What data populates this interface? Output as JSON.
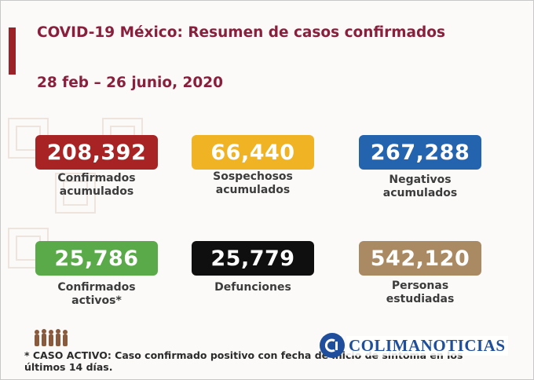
{
  "title": "COVID-19 México: Resumen de casos confirmados",
  "subtitle": "28 feb – 26 junio, 2020",
  "stats": [
    {
      "value": "208,392",
      "label_lines": [
        "Confirmados",
        "acumulados"
      ],
      "color": "#a82424"
    },
    {
      "value": "66,440",
      "label_lines": [
        "Sospechosos",
        "acumulados"
      ],
      "color": "#f0b323"
    },
    {
      "value": "267,288",
      "label_lines": [
        "Negativos",
        "acumulados"
      ],
      "color": "#2463ae"
    },
    {
      "value": "25,786",
      "label_lines": [
        "Confirmados",
        "activos*"
      ],
      "color": "#5aaa4a"
    },
    {
      "value": "25,779",
      "label_lines": [
        "Defunciones"
      ],
      "color": "#0f0f0f"
    },
    {
      "value": "542,120",
      "label_lines": [
        "Personas",
        "estudiadas"
      ],
      "color": "#a98a62"
    }
  ],
  "footnote": {
    "line1": "* CASO ACTIVO: Caso confirmado positivo con fecha de inicio de síntoma en los",
    "line2": "últimos 14 días."
  },
  "watermark": {
    "text": "COLIMANOTICIAS",
    "color": "#1f4e9c"
  },
  "colors": {
    "title": "#8a1f3d",
    "accent_bar": "#9b2226"
  }
}
